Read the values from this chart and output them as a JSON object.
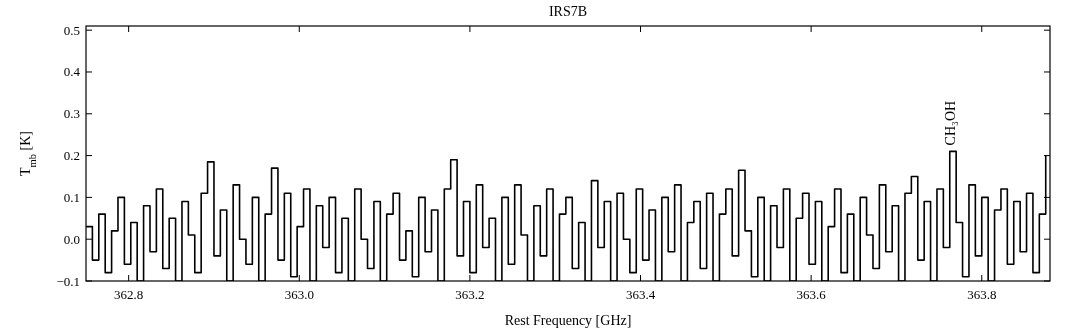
{
  "chart_data": {
    "type": "step",
    "title": "IRS7B",
    "xlabel": "Rest Frequency [GHz]",
    "ylabel": "T$_{mb}$ [K]",
    "xlim": [
      362.75,
      363.88
    ],
    "ylim": [
      -0.1,
      0.51
    ],
    "xticks": [
      362.8,
      {
        "value": 363.0,
        "label": "363.0"
      },
      363.2,
      363.4,
      363.6,
      363.8
    ],
    "yticks": [
      {
        "value": -0.1,
        "label": "−0.1"
      },
      {
        "value": 0,
        "label": "0.0"
      },
      0.1,
      0.2,
      0.3,
      0.4,
      0.5
    ],
    "grid": false,
    "line_style": "solid",
    "annotations": [
      {
        "text": "CH₃OH",
        "x": 363.7625,
        "y": 0.21
      }
    ],
    "series": [
      {
        "color": "#000000",
        "x": [
          362.75,
          362.7575,
          362.765,
          362.7725,
          362.78,
          362.7875,
          362.795,
          362.8025,
          362.81,
          362.8175,
          362.825,
          362.8325,
          362.84,
          362.8475,
          362.855,
          362.8625,
          362.87,
          362.8775,
          362.885,
          362.8925,
          362.9,
          362.9075,
          362.915,
          362.9225,
          362.93,
          362.9375,
          362.945,
          362.9525,
          362.96,
          362.9675,
          362.975,
          362.9825,
          362.99,
          362.9975,
          363.005,
          363.0125,
          363.02,
          363.0275,
          363.035,
          363.0425,
          363.05,
          363.0575,
          363.065,
          363.0725,
          363.08,
          363.0875,
          363.095,
          363.1025,
          363.11,
          363.1175,
          363.125,
          363.1325,
          363.14,
          363.1475,
          363.155,
          363.1625,
          363.17,
          363.1775,
          363.185,
          363.1925,
          363.2,
          363.2075,
          363.215,
          363.2225,
          363.23,
          363.2375,
          363.245,
          363.2525,
          363.26,
          363.2675,
          363.275,
          363.2825,
          363.29,
          363.2975,
          363.305,
          363.3125,
          363.32,
          363.3275,
          363.335,
          363.3425,
          363.35,
          363.3575,
          363.365,
          363.3725,
          363.38,
          363.3875,
          363.395,
          363.4025,
          363.41,
          363.4175,
          363.425,
          363.4325,
          363.44,
          363.4475,
          363.455,
          363.4625,
          363.47,
          363.4775,
          363.485,
          363.4925,
          363.5,
          363.5075,
          363.515,
          363.5225,
          363.53,
          363.5375,
          363.545,
          363.5525,
          363.56,
          363.5675,
          363.575,
          363.5825,
          363.59,
          363.5975,
          363.605,
          363.6125,
          363.62,
          363.6275,
          363.635,
          363.6425,
          363.65,
          363.6575,
          363.665,
          363.6725,
          363.68,
          363.6875,
          363.695,
          363.7025,
          363.71,
          363.7175,
          363.725,
          363.7325,
          363.74,
          363.7475,
          363.755,
          363.7625,
          363.77,
          363.7775,
          363.785,
          363.7925,
          363.8,
          363.8075,
          363.815,
          363.8225,
          363.83,
          363.8375,
          363.845,
          363.8525,
          363.86,
          363.8675,
          363.875
        ],
        "values": [
          0.03,
          -0.05,
          0.06,
          -0.08,
          0.02,
          0.1,
          -0.06,
          0.04,
          -0.1,
          0.08,
          -0.03,
          0.12,
          -0.07,
          0.05,
          -0.1,
          0.09,
          0.01,
          -0.08,
          0.11,
          0.185,
          -0.04,
          0.07,
          -0.1,
          0.13,
          0.0,
          -0.06,
          0.1,
          -0.1,
          0.06,
          0.17,
          -0.05,
          0.11,
          -0.09,
          0.03,
          0.12,
          -0.1,
          0.08,
          -0.02,
          0.1,
          -0.08,
          0.05,
          -0.1,
          0.12,
          0.0,
          -0.07,
          0.09,
          -0.1,
          0.06,
          0.11,
          -0.05,
          0.02,
          -0.09,
          0.1,
          -0.03,
          0.07,
          -0.1,
          0.12,
          0.19,
          -0.04,
          0.09,
          -0.08,
          0.13,
          -0.02,
          0.05,
          -0.1,
          0.1,
          -0.06,
          0.13,
          0.01,
          -0.1,
          0.08,
          -0.04,
          0.12,
          -0.1,
          0.06,
          0.1,
          -0.07,
          0.04,
          -0.1,
          0.14,
          -0.02,
          0.09,
          -0.1,
          0.11,
          0.0,
          -0.08,
          0.12,
          -0.05,
          0.07,
          -0.1,
          0.1,
          -0.03,
          0.13,
          -0.1,
          0.04,
          0.09,
          -0.07,
          0.11,
          -0.1,
          0.06,
          0.12,
          -0.04,
          0.165,
          0.02,
          -0.09,
          0.1,
          -0.1,
          0.08,
          -0.02,
          0.12,
          -0.1,
          0.05,
          0.11,
          -0.06,
          0.09,
          -0.1,
          0.03,
          0.12,
          -0.08,
          0.06,
          -0.1,
          0.1,
          0.01,
          -0.07,
          0.13,
          -0.03,
          0.08,
          -0.1,
          0.11,
          0.15,
          -0.05,
          0.09,
          -0.1,
          0.12,
          -0.02,
          0.21,
          0.04,
          -0.09,
          0.13,
          -0.04,
          0.1,
          -0.1,
          0.07,
          0.12,
          -0.06,
          0.09,
          -0.03,
          0.11,
          -0.08,
          0.06,
          0.2
        ]
      }
    ]
  }
}
